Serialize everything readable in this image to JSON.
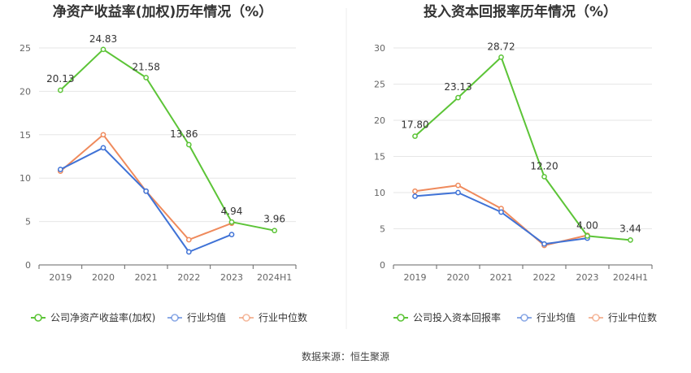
{
  "source_label": "数据来源：恒生聚源",
  "chart_data": [
    {
      "type": "line",
      "title": "净资产收益率(加权)历年情况（%）",
      "categories": [
        "2019",
        "2020",
        "2021",
        "2022",
        "2023",
        "2024H1"
      ],
      "ylim": [
        0,
        25
      ],
      "yticks": [
        0,
        5,
        10,
        15,
        20,
        25
      ],
      "grid": true,
      "legend_position": "bottom",
      "series": [
        {
          "name": "公司净资产收益率(加权)",
          "color": "#5cc437",
          "values": [
            20.13,
            24.83,
            21.58,
            13.86,
            4.94,
            3.96
          ],
          "labels": [
            "20.13",
            "24.83",
            "21.58",
            "13.86",
            "4.94",
            "3.96"
          ]
        },
        {
          "name": "行业均值",
          "color": "#3f72d6",
          "values": [
            11.0,
            13.5,
            8.5,
            1.5,
            3.5,
            null
          ]
        },
        {
          "name": "行业中位数",
          "color": "#ef8a5c",
          "values": [
            10.8,
            15.0,
            8.5,
            2.9,
            4.8,
            null
          ]
        }
      ]
    },
    {
      "type": "line",
      "title": "投入资本回报率历年情况（%）",
      "categories": [
        "2019",
        "2020",
        "2021",
        "2022",
        "2023",
        "2024H1"
      ],
      "ylim": [
        0,
        30
      ],
      "yticks": [
        0,
        5,
        10,
        15,
        20,
        25,
        30
      ],
      "grid": true,
      "legend_position": "bottom",
      "series": [
        {
          "name": "公司投入资本回报率",
          "color": "#5cc437",
          "values": [
            17.8,
            23.13,
            28.72,
            12.2,
            4.0,
            3.44
          ],
          "labels": [
            "17.80",
            "23.13",
            "28.72",
            "12.20",
            "4.00",
            "3.44"
          ]
        },
        {
          "name": "行业均值",
          "color": "#3f72d6",
          "values": [
            9.5,
            10.0,
            7.3,
            2.9,
            3.7,
            null
          ]
        },
        {
          "name": "行业中位数",
          "color": "#ef8a5c",
          "values": [
            10.2,
            11.0,
            7.8,
            2.7,
            4.1,
            null
          ]
        }
      ]
    }
  ]
}
